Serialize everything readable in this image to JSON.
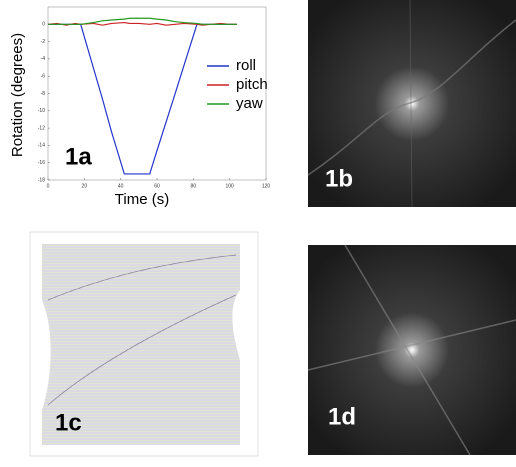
{
  "chart_data": {
    "type": "line",
    "annotation": "1a",
    "x_label": "Time (s)",
    "y_label": "Rotation (degrees)",
    "x": [
      0,
      5,
      10,
      15,
      18,
      25,
      30,
      35,
      42,
      45,
      50,
      56,
      60,
      65,
      70,
      75,
      82,
      85,
      90,
      95,
      100,
      104
    ],
    "series": [
      {
        "name": "roll",
        "color": "#2233cc",
        "values": [
          0,
          0,
          0,
          0,
          0,
          -5.05,
          -8.65,
          -12.45,
          -17.3,
          -17.3,
          -17.3,
          -17.3,
          -14.6,
          -11.3,
          -8.0,
          -4.65,
          0,
          0,
          0,
          0,
          0,
          0
        ]
      },
      {
        "name": "pitch",
        "color": "#cc2222",
        "values": [
          0,
          0.1,
          -0.1,
          0.1,
          0,
          0.1,
          -0.1,
          0.1,
          0.2,
          0.1,
          0.1,
          0,
          0.1,
          -0.1,
          0,
          0.1,
          0,
          -0.1,
          0,
          0.1,
          0,
          0
        ]
      },
      {
        "name": "yaw",
        "color": "#229922",
        "values": [
          0,
          0,
          0,
          0,
          0,
          0.2,
          0.4,
          0.5,
          0.6,
          0.7,
          0.7,
          0.7,
          0.6,
          0.5,
          0.3,
          0.2,
          0.1,
          0,
          0,
          0,
          0,
          0
        ]
      }
    ],
    "xlim": [
      0,
      120
    ],
    "xticks": [
      0,
      20,
      40,
      60,
      80,
      100,
      120
    ],
    "ylim": [
      -18,
      2
    ],
    "yticks": [
      0,
      -2,
      -4,
      -6,
      -8,
      -10,
      -12,
      -14,
      -16,
      -18
    ]
  },
  "panels": [
    {
      "label": "1b"
    },
    {
      "label": "1c"
    },
    {
      "label": "1d"
    }
  ]
}
